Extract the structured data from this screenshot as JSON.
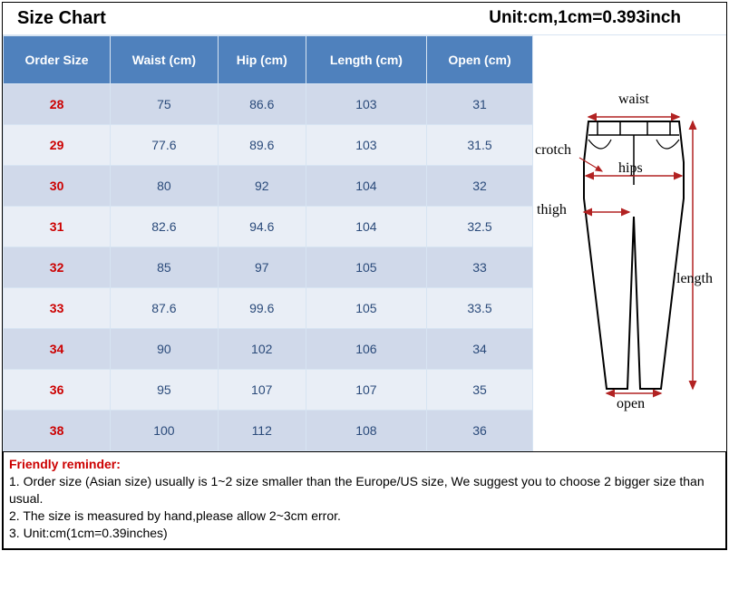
{
  "title": "Size Chart",
  "unit_note": "Unit:cm,1cm=0.393inch",
  "colors": {
    "header_bg": "#4f81bd",
    "header_text": "#ffffff",
    "row_even_bg": "#d0d9ea",
    "row_odd_bg": "#e9eef6",
    "cell_text": "#2a4a7a",
    "size_text": "#cc0000",
    "border": "#d7e4f2",
    "reminder_title": "#cc0000"
  },
  "table": {
    "columns": [
      "Order Size",
      "Waist (cm)",
      "Hip (cm)",
      "Length (cm)",
      "Open (cm)"
    ],
    "rows": [
      [
        "28",
        "75",
        "86.6",
        "103",
        "31"
      ],
      [
        "29",
        "77.6",
        "89.6",
        "103",
        "31.5"
      ],
      [
        "30",
        "80",
        "92",
        "104",
        "32"
      ],
      [
        "31",
        "82.6",
        "94.6",
        "104",
        "32.5"
      ],
      [
        "32",
        "85",
        "97",
        "105",
        "33"
      ],
      [
        "33",
        "87.6",
        "99.6",
        "105",
        "33.5"
      ],
      [
        "34",
        "90",
        "102",
        "106",
        "34"
      ],
      [
        "36",
        "95",
        "107",
        "107",
        "35"
      ],
      [
        "38",
        "100",
        "112",
        "108",
        "36"
      ]
    ]
  },
  "diagram": {
    "labels": {
      "waist": "waist",
      "crotch": "crotch",
      "hips": "hips",
      "thigh": "thigh",
      "open": "open",
      "length": "length"
    },
    "stroke": "#000000",
    "arrow_color": "#b22222"
  },
  "reminder": {
    "title": "Friendly reminder:",
    "lines": [
      "1. Order size (Asian size) usually is 1~2 size smaller than the Europe/US size, We suggest you to choose 2 bigger size than usual.",
      "2. The size is measured by hand,please allow 2~3cm error.",
      "3. Unit:cm(1cm=0.39inches)"
    ]
  }
}
